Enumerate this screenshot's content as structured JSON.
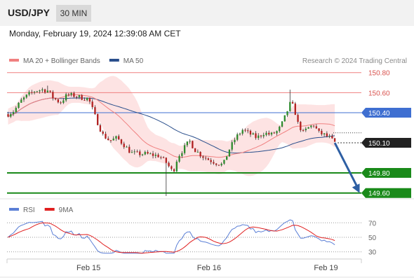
{
  "header": {
    "symbol": "USD/JPY",
    "timeframe": "30 MIN",
    "datetime": "Monday, February 19, 2024 12:39:08 AM CET"
  },
  "legend": {
    "items": [
      {
        "label": "MA 20 + Bollinger Bands",
        "color": "#f08080"
      },
      {
        "label": "MA 50",
        "color": "#2a4f8c"
      }
    ],
    "credit": "Research © 2024 Trading Central"
  },
  "chart_data": {
    "type": "candlestick",
    "y_range": [
      149.57,
      150.84
    ],
    "x_range": [
      0,
      100
    ],
    "x_ticks": [
      {
        "x": 23,
        "label": "Feb 15"
      },
      {
        "x": 57,
        "label": "Feb 16"
      },
      {
        "x": 90,
        "label": "Feb 19"
      }
    ],
    "levels": [
      {
        "value": 150.8,
        "label": "150.80",
        "kind": "resistance"
      },
      {
        "value": 150.6,
        "label": "150.60",
        "kind": "resistance"
      },
      {
        "value": 150.4,
        "label": "150.40",
        "kind": "pivot"
      },
      {
        "value": 150.1,
        "label": "150.10",
        "kind": "last"
      },
      {
        "value": 149.8,
        "label": "149.80",
        "kind": "support"
      },
      {
        "value": 149.6,
        "label": "149.60",
        "kind": "support"
      }
    ],
    "forecast_arrow": {
      "from": [
        92.5,
        150.1
      ],
      "to": [
        99.5,
        149.6
      ]
    },
    "colors": {
      "bull": "#2e8b2e",
      "bear": "#b22222",
      "ma20": "#f08080",
      "band_fill": "#fde0e0",
      "ma50": "#2a4f8c",
      "resistance": "#f08080",
      "pivot": "#3f6fd1",
      "support": "#1a8a1a",
      "arrow": "#2e5fa3",
      "rsi": "#5b7fd6",
      "rsi_ma": "#e02020"
    }
  },
  "rsi_panel": {
    "legend": [
      {
        "label": "RSI",
        "color": "#5b7fd6"
      },
      {
        "label": "9MA",
        "color": "#e02020"
      }
    ],
    "levels": [
      {
        "value": 70,
        "label": "70"
      },
      {
        "value": 50,
        "label": "50"
      },
      {
        "value": 30,
        "label": "30"
      }
    ],
    "y_range": [
      22,
      78
    ]
  }
}
